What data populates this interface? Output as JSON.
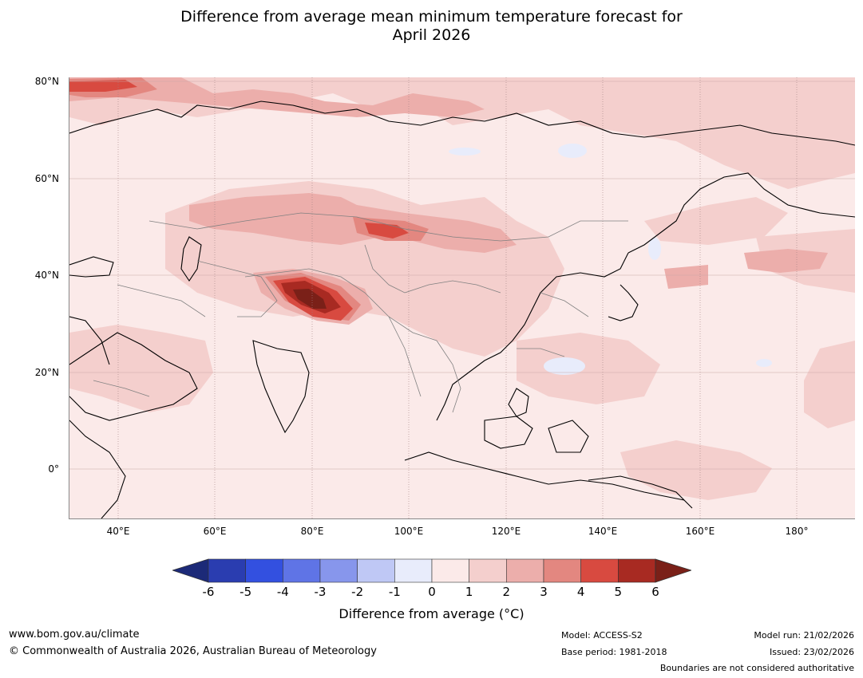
{
  "title": {
    "line1": "Difference from average mean minimum temperature forecast for",
    "line2": "April 2026"
  },
  "map": {
    "latitude_labels": [
      "80°N",
      "60°N",
      "40°N",
      "20°N",
      "0°"
    ],
    "longitude_labels": [
      "40°E",
      "60°E",
      "80°E",
      "100°E",
      "120°E",
      "140°E",
      "160°E",
      "180°"
    ],
    "extent": {
      "lon_min": 30,
      "lon_max": 192,
      "lat_min": -10,
      "lat_max": 81
    }
  },
  "colorbar": {
    "ticks": [
      "-6",
      "-5",
      "-4",
      "-3",
      "-2",
      "-1",
      "0",
      "1",
      "2",
      "3",
      "4",
      "5",
      "6"
    ],
    "colors": [
      "#1c2a78",
      "#2a3db0",
      "#3350e0",
      "#5f74e6",
      "#8796ec",
      "#bfc8f5",
      "#e8ecfb",
      "#fbeae9",
      "#f4cfcd",
      "#ecaeab",
      "#e38780",
      "#d84a40",
      "#a82a22",
      "#7a2018"
    ],
    "label": "Difference from average (°C)"
  },
  "footer": {
    "website": "www.bom.gov.au/climate",
    "copyright": "© Commonwealth of Australia 2026, Australian Bureau of Meteorology",
    "model": "Model: ACCESS-S2",
    "base_period": "Base period: 1981-2018",
    "model_run": "Model run: 21/02/2026",
    "issued": "Issued: 23/02/2026",
    "disclaimer": "Boundaries are not considered authoritative"
  }
}
